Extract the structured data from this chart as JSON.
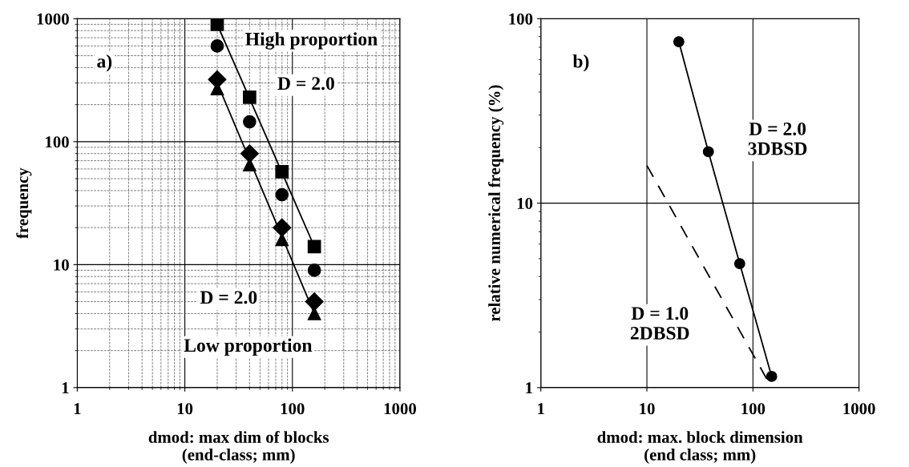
{
  "chart_data": [
    {
      "type": "scatter",
      "xlabel": "dmod: max dim of blocks\n(end-class; mm)",
      "ylabel": "frequency",
      "log": "xy",
      "xlim": [
        1,
        1000
      ],
      "ylim": [
        1,
        1000
      ],
      "xticks": [
        1,
        10,
        100,
        1000
      ],
      "yticks": [
        1,
        10,
        100,
        1000
      ],
      "grid": true,
      "annotations": [
        "a)",
        "High proportion",
        "D = 2.0",
        "D = 2.0",
        "Low proportion"
      ],
      "series": [
        {
          "color": "#000000",
          "marker": "square",
          "x": [
            20,
            40,
            80,
            160
          ],
          "values": [
            900,
            230,
            57,
            14
          ]
        },
        {
          "color": "#000000",
          "marker": "circle",
          "x": [
            20,
            40,
            80,
            160
          ],
          "values": [
            600,
            145,
            37,
            9
          ]
        },
        {
          "color": "#000000",
          "marker": "diamond",
          "x": [
            20,
            40,
            80,
            160
          ],
          "values": [
            320,
            80,
            20,
            5
          ]
        },
        {
          "color": "#000000",
          "marker": "triangle",
          "x": [
            20,
            40,
            80,
            160
          ],
          "values": [
            270,
            65,
            16,
            4
          ]
        },
        {
          "type": "line",
          "color": "#000000",
          "marker": "none",
          "line_style": "solid",
          "x": [
            20,
            160
          ],
          "values": [
            900,
            14
          ]
        },
        {
          "type": "line",
          "color": "#000000",
          "marker": "none",
          "line_style": "solid",
          "x": [
            20,
            160
          ],
          "values": [
            300,
            4
          ]
        }
      ]
    },
    {
      "type": "line",
      "xlabel": "dmod: max. block dimension\n(end class; mm)",
      "ylabel": "relative numerical frequency (%)",
      "log": "xy",
      "xlim": [
        1,
        1000
      ],
      "ylim": [
        1,
        100
      ],
      "xticks": [
        1,
        10,
        100,
        1000
      ],
      "yticks": [
        1,
        10,
        100
      ],
      "grid": true,
      "annotations": [
        "b)",
        "D = 2.0\n3DBSD",
        "D = 1.0\n2DBSD"
      ],
      "series": [
        {
          "color": "#000000",
          "marker": "circle",
          "line_style": "solid",
          "x": [
            20,
            38,
            75,
            150
          ],
          "values": [
            75,
            19,
            4.7,
            1.15
          ]
        },
        {
          "color": "#000000",
          "marker": "none",
          "line_style": "dashed",
          "x": [
            10,
            150
          ],
          "values": [
            16,
            1
          ]
        }
      ]
    }
  ]
}
